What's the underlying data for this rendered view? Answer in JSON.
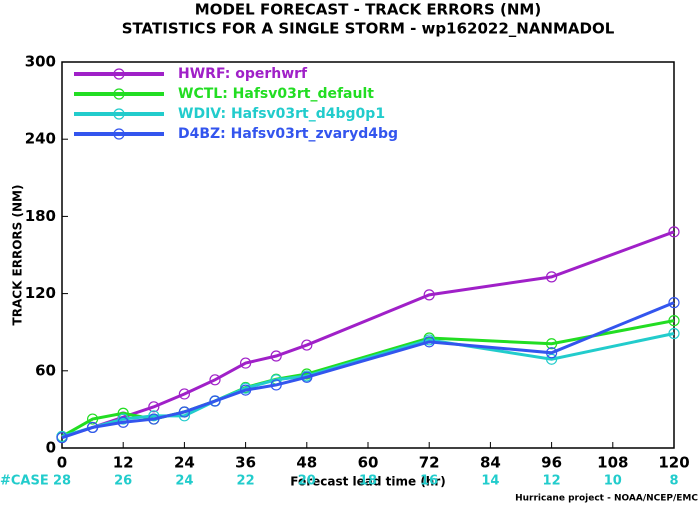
{
  "chart_data": {
    "type": "line",
    "title": "MODEL FORECAST - TRACK ERRORS (NM)",
    "subtitle": "STATISTICS FOR A SINGLE STORM - wp162022_NANMADOL",
    "xlabel": "Forecast lead time (hr)",
    "ylabel": "TRACK ERRORS (NM)",
    "footer": "Hurricane project - NOAA/NCEP/EMC",
    "x": [
      0,
      6,
      12,
      18,
      24,
      30,
      36,
      42,
      48,
      72,
      96,
      120
    ],
    "series": [
      {
        "name": "HWRF: operhwrf",
        "color": "#a020c8",
        "values": [
          8.5,
          16,
          24,
          32,
          42,
          53,
          66,
          71.5,
          80,
          119,
          133,
          168
        ]
      },
      {
        "name": "WCTL: Hafsv03rt_default",
        "color": "#22dd22",
        "values": [
          9,
          22.5,
          27,
          22.5,
          28,
          36.5,
          47,
          53.5,
          57.5,
          85.5,
          81,
          99
        ]
      },
      {
        "name": "WDIV: Hafsv03rt_d4bg0p1",
        "color": "#22cccc",
        "values": [
          9,
          16,
          22.5,
          25,
          25,
          36.5,
          46.5,
          53,
          56,
          84,
          69,
          89
        ]
      },
      {
        "name": "D4BZ: Hafsv03rt_zvaryd4bg",
        "color": "#3355ee",
        "values": [
          8,
          16,
          20,
          22.5,
          28,
          36.5,
          45,
          49,
          55,
          82.5,
          74,
          113
        ]
      }
    ],
    "xlim": [
      0,
      120
    ],
    "xticks": [
      0,
      12,
      24,
      36,
      48,
      60,
      72,
      84,
      96,
      108,
      120
    ],
    "ylim": [
      0,
      300
    ],
    "yticks": [
      0,
      60,
      120,
      180,
      240,
      300
    ],
    "cases": {
      "label": "#CASE",
      "color": "#22cccc",
      "values": [
        28,
        26,
        24,
        22,
        20,
        18,
        16,
        14,
        12,
        10,
        8
      ]
    }
  }
}
